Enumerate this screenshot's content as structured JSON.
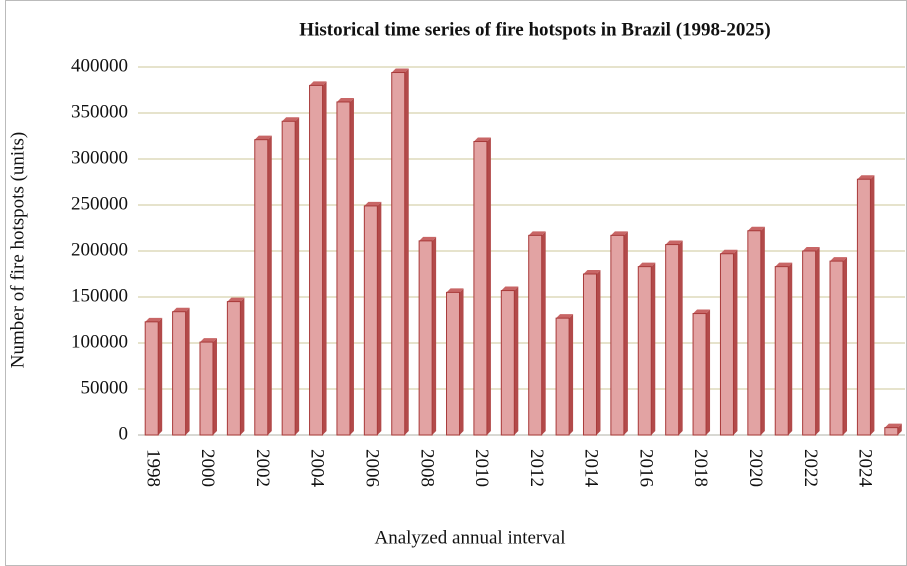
{
  "chart_data": {
    "type": "bar",
    "title": "Historical time series of fire hotspots in Brazil (1998-2025)",
    "x_label": "Analyzed annual interval",
    "y_label": "Number of fire hotspots (units)",
    "categories": [
      "1998",
      null,
      "2000",
      null,
      "2002",
      null,
      "2004",
      null,
      "2006",
      null,
      "2008",
      null,
      "2010",
      null,
      "2012",
      null,
      "2014",
      null,
      "2016",
      null,
      "2018",
      null,
      "2020",
      null,
      "2022",
      null,
      "2024",
      null
    ],
    "values": [
      123000,
      134000,
      101000,
      145000,
      321000,
      341000,
      380000,
      362000,
      249000,
      394000,
      211000,
      155000,
      319000,
      157000,
      217000,
      127000,
      175000,
      217000,
      183000,
      207000,
      132000,
      197000,
      222000,
      183000,
      200000,
      189000,
      278000,
      8000
    ],
    "color": "#e2a3a3",
    "ylim": [
      0,
      400000
    ],
    "yticks": [
      0,
      50000,
      100000,
      150000,
      200000,
      250000,
      300000,
      350000,
      400000
    ],
    "grid": true
  }
}
